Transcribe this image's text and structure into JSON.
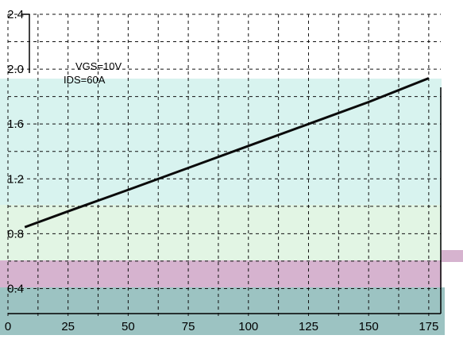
{
  "chart_data": {
    "type": "line",
    "title": "",
    "xlabel": "",
    "ylabel": "",
    "xlim": [
      0,
      180
    ],
    "ylim": [
      0.2,
      2.4
    ],
    "x_ticks": [
      "0",
      "25",
      "50",
      "75",
      "100",
      "125",
      "150",
      "175"
    ],
    "y_ticks": [
      "0.4",
      "0.8",
      "1.2",
      "1.6",
      "2.0",
      "2.4"
    ],
    "grid": true,
    "annotations": [
      "VGS=10V",
      "IDS=60A"
    ],
    "series": [
      {
        "x": [
          7,
          25,
          50,
          75,
          100,
          125,
          150,
          175
        ],
        "y": [
          0.848,
          0.963,
          1.12,
          1.28,
          1.44,
          1.6,
          1.76,
          1.934
        ]
      }
    ],
    "colors": {
      "line": "#0a0a0a",
      "grid": "#111111",
      "band_cyan": "#d8f3ef",
      "band_green": "#e2f5e4",
      "band_pink": "#d6b3cf",
      "band_teal": "#9cc3c2"
    }
  }
}
